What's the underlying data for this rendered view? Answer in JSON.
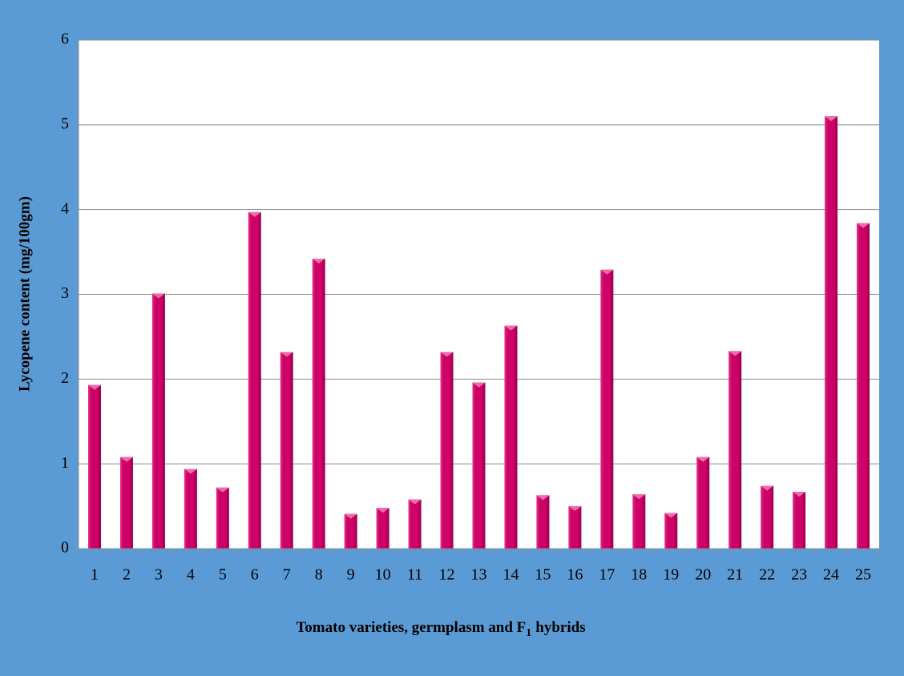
{
  "chart_data": {
    "type": "bar",
    "ylabel": "Lycopene content (mg/100gm)",
    "xlabel": {
      "text": "Tomato varieties, germplasm and F",
      "subscript": "1",
      "after": "hybrids"
    },
    "categories": [
      "1",
      "2",
      "3",
      "4",
      "5",
      "6",
      "7",
      "8",
      "9",
      "10",
      "11",
      "12",
      "13",
      "14",
      "15",
      "16",
      "17",
      "18",
      "19",
      "20",
      "21",
      "22",
      "23",
      "24",
      "25"
    ],
    "values": [
      1.93,
      1.08,
      3.01,
      0.94,
      0.72,
      3.97,
      2.32,
      3.42,
      0.41,
      0.48,
      0.58,
      2.32,
      1.96,
      2.63,
      0.63,
      0.5,
      3.29,
      0.64,
      0.42,
      1.08,
      2.33,
      0.74,
      0.67,
      5.1,
      3.84
    ],
    "color": "#cc0066",
    "ylim": [
      0,
      6
    ],
    "yticks": [
      0,
      1,
      2,
      3,
      4,
      5,
      6
    ],
    "grid": true
  }
}
